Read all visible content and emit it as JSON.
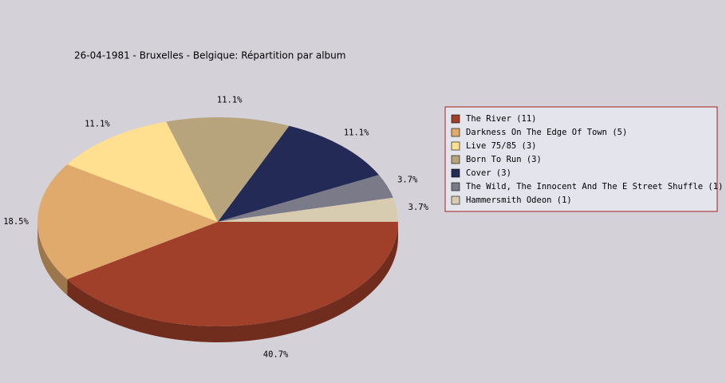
{
  "chart_data": {
    "type": "pie",
    "title": "26-04-1981 - Bruxelles - Belgique:  Répartition par album",
    "categories": [
      "The River (11)",
      "Darkness On The Edge Of Town (5)",
      "Live 75/85 (3)",
      "Born To Run (3)",
      "Cover (3)",
      "The Wild, The Innocent And The E Street Shuffle (1)",
      "Hammersmith Odeon  (1)"
    ],
    "values": [
      40.7,
      18.5,
      11.1,
      11.1,
      11.1,
      3.7,
      3.7
    ],
    "value_labels": [
      "40.7%",
      "18.5%",
      "11.1%",
      "11.1%",
      "11.1%",
      "3.7%",
      "3.7%"
    ],
    "colors": [
      "#a0402a",
      "#e0aa6c",
      "#ffdf90",
      "#b8a47c",
      "#232a55",
      "#7a7a88",
      "#d8ccb0"
    ],
    "legend": "right"
  }
}
